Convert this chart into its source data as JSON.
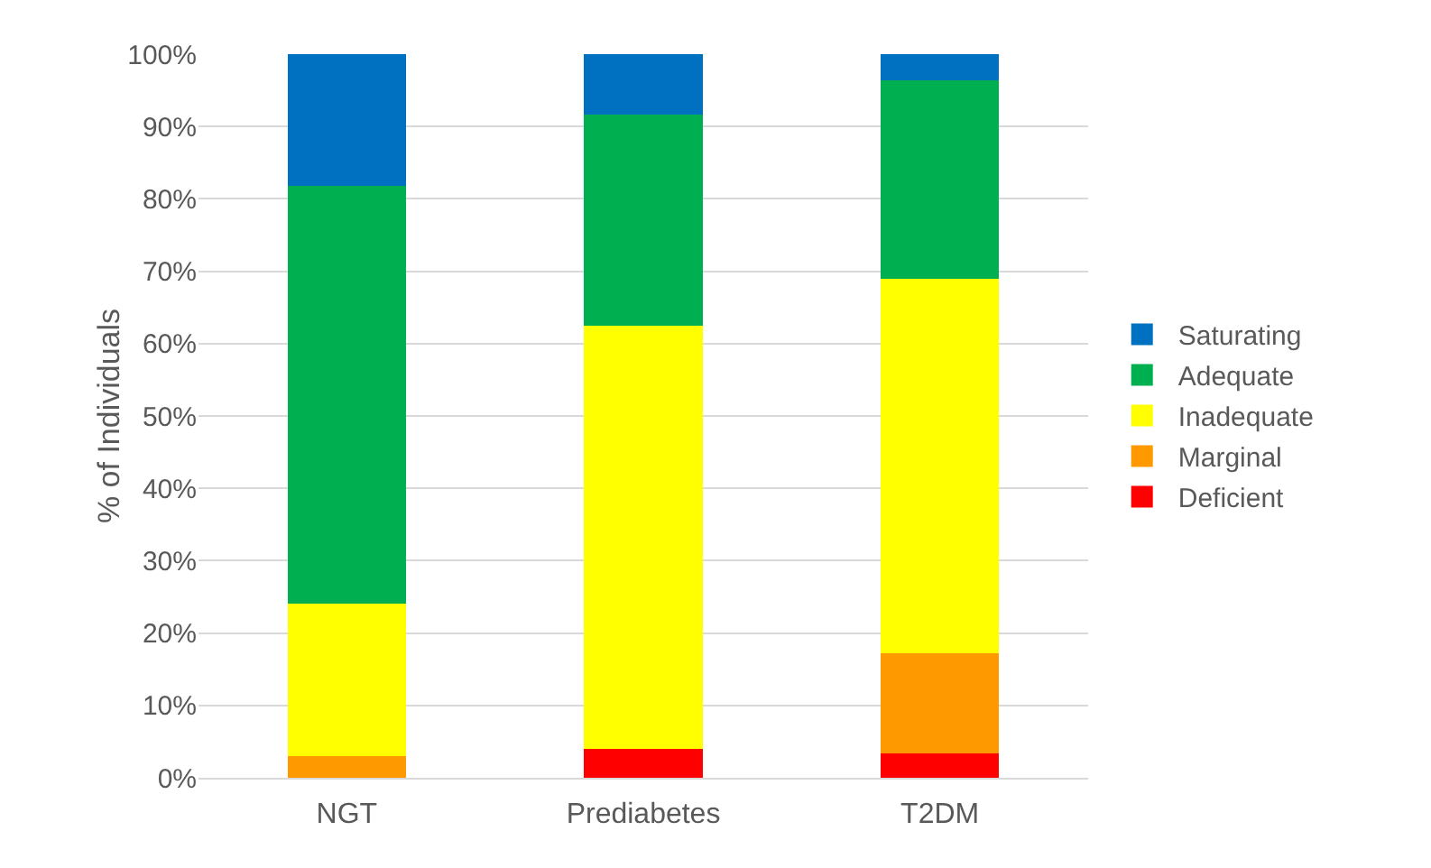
{
  "chart_data": {
    "type": "bar",
    "stacked": true,
    "ylabel": "% of Individuals",
    "categories": [
      "NGT",
      "Prediabetes",
      "T2DM"
    ],
    "series": [
      {
        "name": "Deficient",
        "color": "#ff0000",
        "values": [
          0,
          4.0,
          3.4
        ]
      },
      {
        "name": "Marginal",
        "color": "#ff9900",
        "values": [
          3.0,
          0,
          13.8
        ]
      },
      {
        "name": "Inadequate",
        "color": "#ffff00",
        "values": [
          21.1,
          58.5,
          51.8
        ]
      },
      {
        "name": "Adequate",
        "color": "#00b050",
        "values": [
          57.7,
          29.1,
          27.4
        ]
      },
      {
        "name": "Saturating",
        "color": "#0070c0",
        "values": [
          18.2,
          8.4,
          3.6
        ]
      }
    ],
    "ylim": [
      0,
      100
    ],
    "yticks": [
      {
        "value": 0,
        "label": "0%"
      },
      {
        "value": 10,
        "label": "10%"
      },
      {
        "value": 20,
        "label": "20%"
      },
      {
        "value": 30,
        "label": "30%"
      },
      {
        "value": 40,
        "label": "40%"
      },
      {
        "value": 50,
        "label": "50%"
      },
      {
        "value": 60,
        "label": "60%"
      },
      {
        "value": 70,
        "label": "70%"
      },
      {
        "value": 80,
        "label": "80%"
      },
      {
        "value": 90,
        "label": "90%"
      },
      {
        "value": 100,
        "label": "100%"
      }
    ],
    "grid": "y",
    "legend": "right"
  }
}
